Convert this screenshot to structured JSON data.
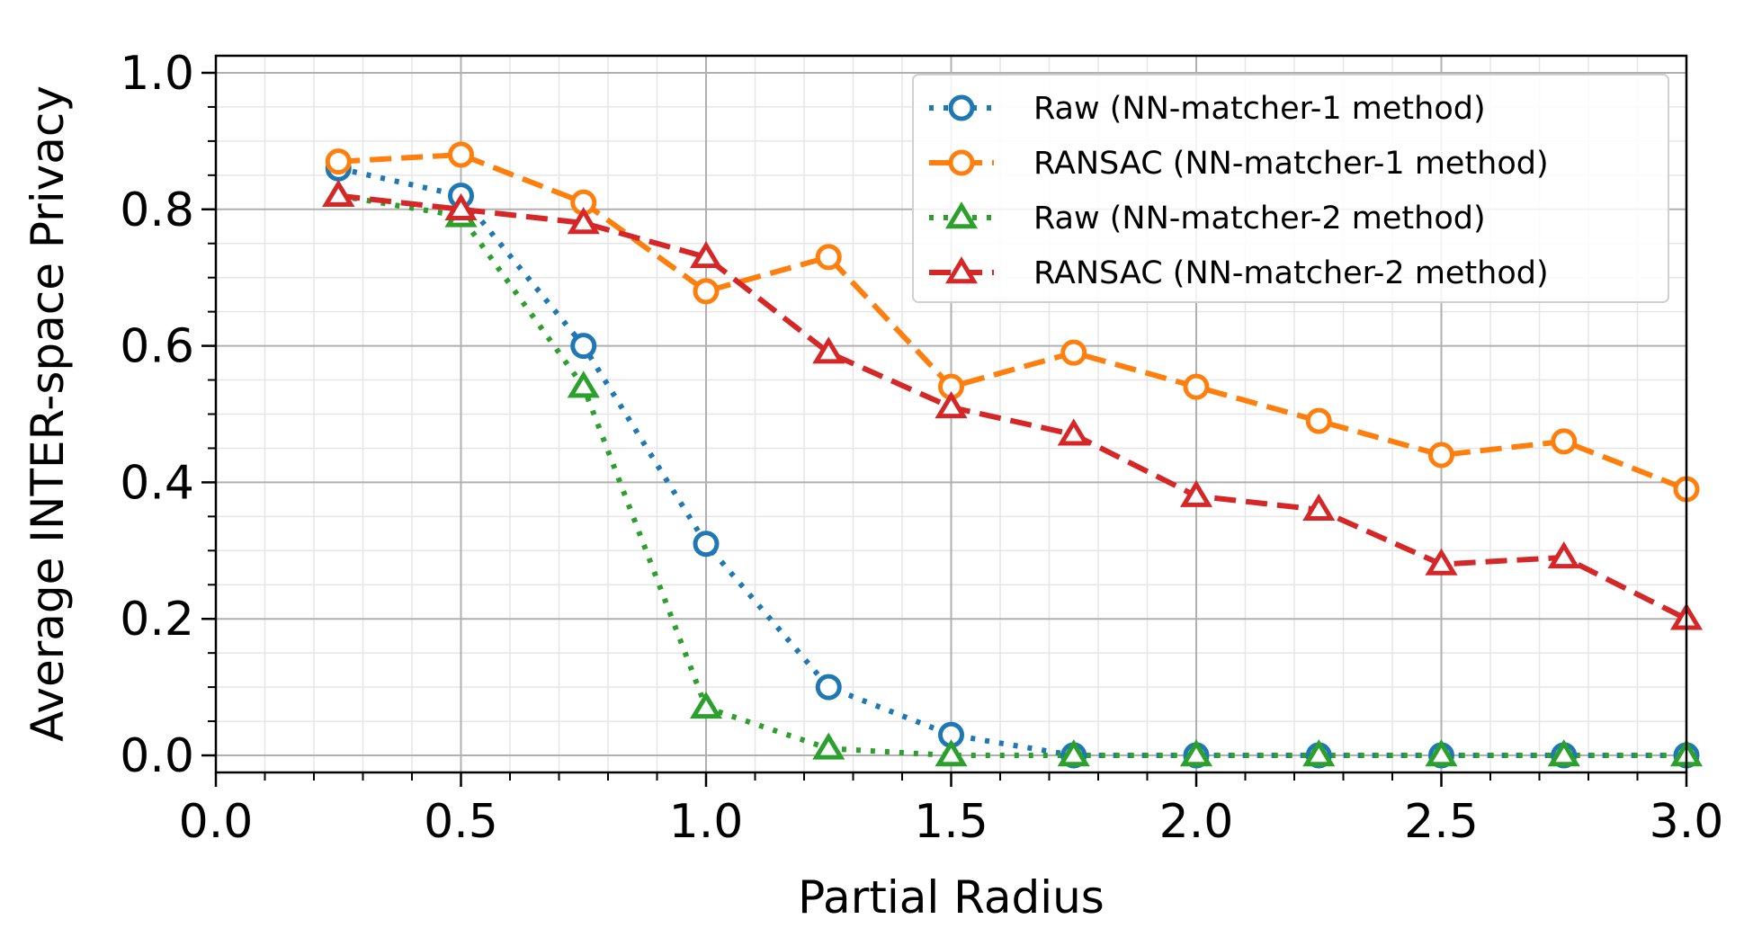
{
  "chart_data": {
    "type": "line",
    "title": "",
    "xlabel": "Partial Radius",
    "ylabel": "Average INTER-space Privacy",
    "xlim": [
      0.0,
      3.0
    ],
    "ylim": [
      -0.025,
      1.025
    ],
    "xticks": [
      0.0,
      0.5,
      1.0,
      1.5,
      2.0,
      2.5,
      3.0
    ],
    "xtick_labels": [
      "0.0",
      "0.5",
      "1.0",
      "1.5",
      "2.0",
      "2.5",
      "3.0"
    ],
    "yticks": [
      0.0,
      0.2,
      0.4,
      0.6,
      0.8,
      1.0
    ],
    "ytick_labels": [
      "0.0",
      "0.2",
      "0.4",
      "0.6",
      "0.8",
      "1.0"
    ],
    "grid": "major and minor",
    "legend_position": "top-right",
    "x": [
      0.25,
      0.5,
      0.75,
      1.0,
      1.25,
      1.5,
      1.75,
      2.0,
      2.25,
      2.5,
      2.75,
      3.0
    ],
    "series": [
      {
        "name": "Raw (NN-matcher-1 method)",
        "color": "#1f77b4",
        "marker": "circle",
        "linestyle": "dotted",
        "values": [
          0.86,
          0.82,
          0.6,
          0.31,
          0.1,
          0.03,
          0.0,
          0.0,
          0.0,
          0.0,
          0.0,
          0.0
        ]
      },
      {
        "name": "RANSAC (NN-matcher-1 method)",
        "color": "#ff7f0e",
        "marker": "circle",
        "linestyle": "dashed",
        "values": [
          0.87,
          0.88,
          0.81,
          0.68,
          0.73,
          0.54,
          0.59,
          0.54,
          0.49,
          0.44,
          0.46,
          0.39
        ]
      },
      {
        "name": "Raw (NN-matcher-2 method)",
        "color": "#2ca02c",
        "marker": "triangle",
        "linestyle": "dotted",
        "values": [
          0.82,
          0.79,
          0.54,
          0.07,
          0.01,
          0.0,
          0.0,
          0.0,
          0.0,
          0.0,
          0.0,
          0.0
        ]
      },
      {
        "name": "RANSAC (NN-matcher-2 method)",
        "color": "#d62728",
        "marker": "triangle",
        "linestyle": "dashed",
        "values": [
          0.82,
          0.8,
          0.78,
          0.73,
          0.59,
          0.51,
          0.47,
          0.38,
          0.36,
          0.28,
          0.29,
          0.2
        ]
      }
    ]
  }
}
